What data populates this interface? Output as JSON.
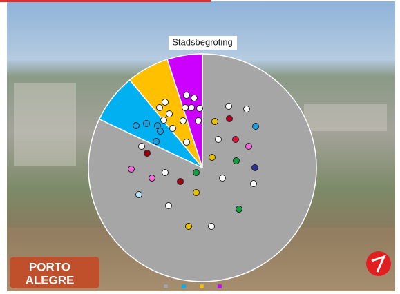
{
  "title": "Stadsbegroting",
  "logo_text": [
    "PORTO",
    "ALEGRE"
  ],
  "chart_data": {
    "type": "pie",
    "values": [
      82,
      7,
      6,
      5
    ],
    "colors": [
      "#a6a6a6",
      "#00b0f0",
      "#ffc000",
      "#cc00ff"
    ]
  }
}
